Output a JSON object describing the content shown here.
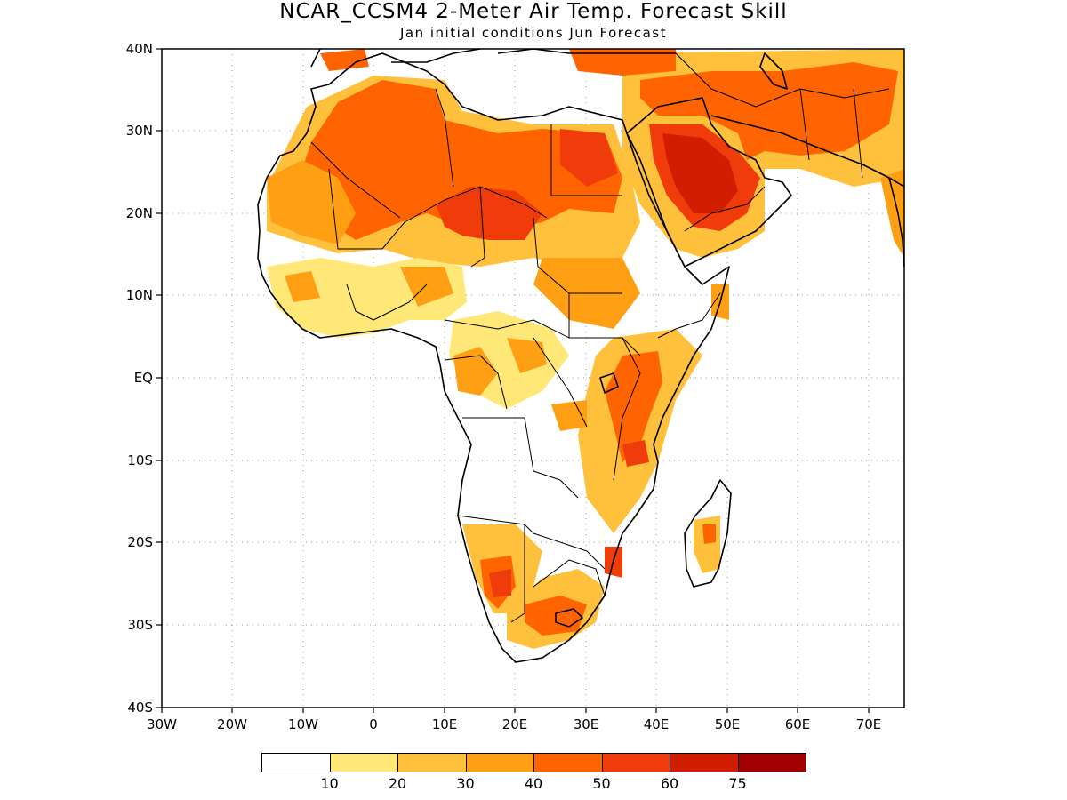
{
  "title": "NCAR_CCSM4 2-Meter Air Temp. Forecast Skill",
  "subtitle": "Jan initial conditions  Jun Forecast",
  "y_ticks": [
    "40N",
    "30N",
    "20N",
    "10N",
    "EQ",
    "10S",
    "20S",
    "30S",
    "40S"
  ],
  "x_ticks": [
    "30W",
    "20W",
    "10W",
    "0",
    "10E",
    "20E",
    "30E",
    "40E",
    "50E",
    "60E",
    "70E"
  ],
  "colorbar": {
    "colors": [
      "#ffffff",
      "#ffe878",
      "#ffc03c",
      "#ffa014",
      "#ff6400",
      "#f03c0a",
      "#d21e00",
      "#a00000"
    ],
    "labels": [
      "10",
      "20",
      "30",
      "40",
      "50",
      "60",
      "75"
    ]
  },
  "colors": {
    "c1": "#ffe878",
    "c2": "#ffc03c",
    "c3": "#ffa014",
    "c4": "#ff6400",
    "c5": "#f03c0a",
    "c6": "#d21e00"
  }
}
